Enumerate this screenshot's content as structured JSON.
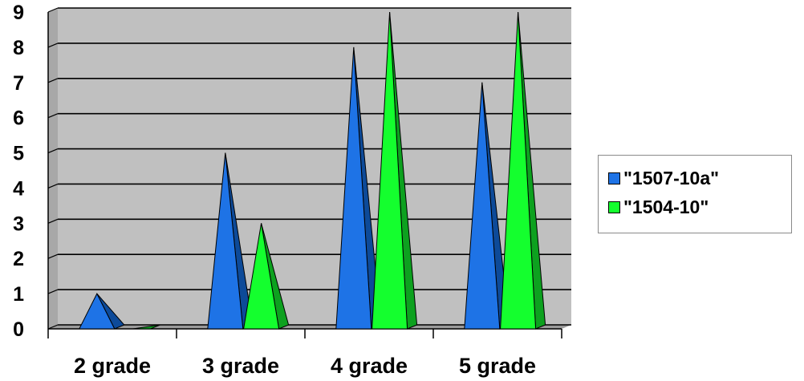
{
  "chart_data": {
    "type": "bar",
    "style": "3d-pyramid",
    "categories": [
      "2 grade",
      "3 grade",
      "4 grade",
      "5 grade"
    ],
    "series": [
      {
        "name": "\"1507-10a\"",
        "values": [
          1,
          5,
          8,
          7
        ],
        "color": "#1e73e6",
        "dark": "#0d4a99"
      },
      {
        "name": "\"1504-10\"",
        "values": [
          0,
          3,
          9,
          9
        ],
        "color": "#14ff2e",
        "dark": "#0da11f"
      }
    ],
    "ylim": [
      0,
      9
    ],
    "yticks": [
      "0",
      "1",
      "2",
      "3",
      "4",
      "5",
      "6",
      "7",
      "8",
      "9"
    ],
    "grid": true,
    "plot_background": "#c0c0c0",
    "legend_position": "right",
    "title": "",
    "xlabel": "",
    "ylabel": ""
  }
}
